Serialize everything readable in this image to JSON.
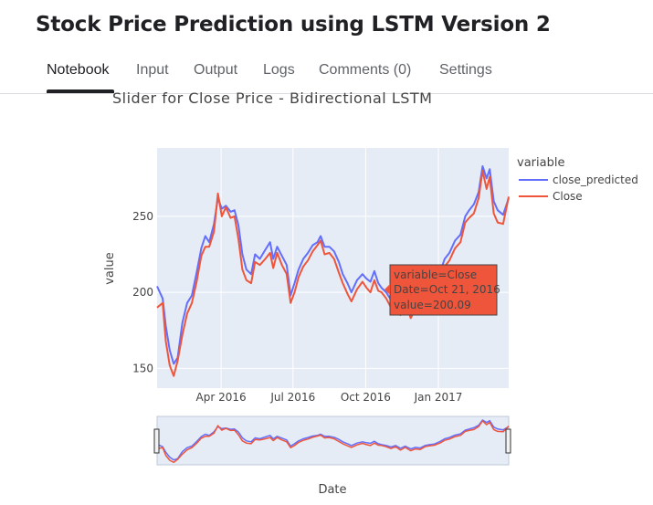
{
  "page": {
    "title": "Stock Price Prediction using LSTM Version 2"
  },
  "tabs": [
    {
      "label": "Notebook",
      "active": true
    },
    {
      "label": "Input",
      "active": false
    },
    {
      "label": "Output",
      "active": false
    },
    {
      "label": "Logs",
      "active": false
    },
    {
      "label": "Comments (0)",
      "active": false
    },
    {
      "label": "Settings",
      "active": false
    }
  ],
  "colors": {
    "close_predicted": "#636efa",
    "Close": "#ef553b",
    "plot_bg": "#e5ecf6",
    "tooltip_bg": "#ef553b"
  },
  "chart_data": {
    "type": "line",
    "title": "Slider for Close Price - Bidirectional LSTM",
    "xlabel": "Date",
    "ylabel": "value",
    "x_ticks": [
      "Apr 2016",
      "Jul 2016",
      "Oct 2016",
      "Jan 2017"
    ],
    "y_ticks": [
      150,
      200,
      250
    ],
    "xlim": [
      "2016-01-11",
      "2017-03-31"
    ],
    "ylim": [
      137,
      295
    ],
    "grid": true,
    "legend_title": "variable",
    "legend_position": "top-right",
    "range_slider": true,
    "series": [
      {
        "name": "close_predicted",
        "points": [
          [
            "2016-01-11",
            204
          ],
          [
            "2016-01-18",
            196
          ],
          [
            "2016-01-22",
            178
          ],
          [
            "2016-01-27",
            162
          ],
          [
            "2016-02-01",
            153
          ],
          [
            "2016-02-06",
            157
          ],
          [
            "2016-02-12",
            180
          ],
          [
            "2016-02-18",
            193
          ],
          [
            "2016-02-24",
            198
          ],
          [
            "2016-03-01",
            213
          ],
          [
            "2016-03-07",
            229
          ],
          [
            "2016-03-12",
            237
          ],
          [
            "2016-03-17",
            233
          ],
          [
            "2016-03-23",
            245
          ],
          [
            "2016-03-28",
            262
          ],
          [
            "2016-04-02",
            255
          ],
          [
            "2016-04-07",
            257
          ],
          [
            "2016-04-13",
            253
          ],
          [
            "2016-04-18",
            254
          ],
          [
            "2016-04-23",
            244
          ],
          [
            "2016-04-28",
            225
          ],
          [
            "2016-05-03",
            215
          ],
          [
            "2016-05-09",
            212
          ],
          [
            "2016-05-14",
            225
          ],
          [
            "2016-05-20",
            222
          ],
          [
            "2016-05-27",
            228
          ],
          [
            "2016-06-02",
            233
          ],
          [
            "2016-06-06",
            222
          ],
          [
            "2016-06-11",
            230
          ],
          [
            "2016-06-17",
            224
          ],
          [
            "2016-06-23",
            218
          ],
          [
            "2016-06-28",
            198
          ],
          [
            "2016-07-03",
            206
          ],
          [
            "2016-07-08",
            215
          ],
          [
            "2016-07-14",
            222
          ],
          [
            "2016-07-20",
            226
          ],
          [
            "2016-07-26",
            231
          ],
          [
            "2016-08-01",
            233
          ],
          [
            "2016-08-05",
            237
          ],
          [
            "2016-08-10",
            230
          ],
          [
            "2016-08-16",
            230
          ],
          [
            "2016-08-22",
            227
          ],
          [
            "2016-08-28",
            220
          ],
          [
            "2016-09-02",
            212
          ],
          [
            "2016-09-08",
            206
          ],
          [
            "2016-09-13",
            200
          ],
          [
            "2016-09-20",
            208
          ],
          [
            "2016-09-27",
            212
          ],
          [
            "2016-10-02",
            209
          ],
          [
            "2016-10-07",
            207
          ],
          [
            "2016-10-12",
            214
          ],
          [
            "2016-10-17",
            206
          ],
          [
            "2016-10-21",
            203
          ],
          [
            "2016-10-27",
            200
          ],
          [
            "2016-11-02",
            195
          ],
          [
            "2016-11-08",
            200
          ],
          [
            "2016-11-14",
            191
          ],
          [
            "2016-11-20",
            198
          ],
          [
            "2016-11-27",
            189
          ],
          [
            "2016-12-03",
            194
          ],
          [
            "2016-12-09",
            192
          ],
          [
            "2016-12-15",
            200
          ],
          [
            "2016-12-21",
            203
          ],
          [
            "2016-12-27",
            205
          ],
          [
            "2017-01-03",
            213
          ],
          [
            "2017-01-09",
            222
          ],
          [
            "2017-01-15",
            226
          ],
          [
            "2017-01-22",
            234
          ],
          [
            "2017-01-29",
            238
          ],
          [
            "2017-02-04",
            250
          ],
          [
            "2017-02-09",
            254
          ],
          [
            "2017-02-15",
            258
          ],
          [
            "2017-02-21",
            266
          ],
          [
            "2017-02-26",
            283
          ],
          [
            "2017-03-03",
            275
          ],
          [
            "2017-03-07",
            281
          ],
          [
            "2017-03-12",
            260
          ],
          [
            "2017-03-17",
            254
          ],
          [
            "2017-03-24",
            251
          ],
          [
            "2017-03-31",
            262
          ]
        ]
      },
      {
        "name": "Close",
        "points": [
          [
            "2016-01-11",
            190
          ],
          [
            "2016-01-18",
            193
          ],
          [
            "2016-01-22",
            168
          ],
          [
            "2016-01-27",
            152
          ],
          [
            "2016-02-01",
            145
          ],
          [
            "2016-02-06",
            155
          ],
          [
            "2016-02-12",
            172
          ],
          [
            "2016-02-18",
            186
          ],
          [
            "2016-02-24",
            193
          ],
          [
            "2016-03-01",
            207
          ],
          [
            "2016-03-07",
            224
          ],
          [
            "2016-03-12",
            230
          ],
          [
            "2016-03-17",
            230
          ],
          [
            "2016-03-23",
            240
          ],
          [
            "2016-03-28",
            265
          ],
          [
            "2016-04-02",
            250
          ],
          [
            "2016-04-07",
            256
          ],
          [
            "2016-04-13",
            249
          ],
          [
            "2016-04-18",
            250
          ],
          [
            "2016-04-23",
            235
          ],
          [
            "2016-04-28",
            215
          ],
          [
            "2016-05-03",
            208
          ],
          [
            "2016-05-09",
            206
          ],
          [
            "2016-05-14",
            220
          ],
          [
            "2016-05-20",
            218
          ],
          [
            "2016-05-27",
            222
          ],
          [
            "2016-06-02",
            226
          ],
          [
            "2016-06-06",
            216
          ],
          [
            "2016-06-11",
            226
          ],
          [
            "2016-06-17",
            218
          ],
          [
            "2016-06-23",
            212
          ],
          [
            "2016-06-28",
            193
          ],
          [
            "2016-07-03",
            200
          ],
          [
            "2016-07-08",
            210
          ],
          [
            "2016-07-14",
            217
          ],
          [
            "2016-07-20",
            221
          ],
          [
            "2016-07-26",
            227
          ],
          [
            "2016-08-01",
            231
          ],
          [
            "2016-08-05",
            234
          ],
          [
            "2016-08-10",
            225
          ],
          [
            "2016-08-16",
            226
          ],
          [
            "2016-08-22",
            222
          ],
          [
            "2016-08-28",
            213
          ],
          [
            "2016-09-02",
            206
          ],
          [
            "2016-09-08",
            199
          ],
          [
            "2016-09-13",
            194
          ],
          [
            "2016-09-20",
            202
          ],
          [
            "2016-09-27",
            207
          ],
          [
            "2016-10-02",
            203
          ],
          [
            "2016-10-07",
            200
          ],
          [
            "2016-10-12",
            208
          ],
          [
            "2016-10-17",
            201
          ],
          [
            "2016-10-21",
            200.09
          ],
          [
            "2016-10-27",
            196
          ],
          [
            "2016-11-02",
            190
          ],
          [
            "2016-11-08",
            196
          ],
          [
            "2016-11-14",
            185
          ],
          [
            "2016-11-20",
            194
          ],
          [
            "2016-11-27",
            183
          ],
          [
            "2016-12-03",
            189
          ],
          [
            "2016-12-09",
            187
          ],
          [
            "2016-12-15",
            196
          ],
          [
            "2016-12-21",
            199
          ],
          [
            "2016-12-27",
            201
          ],
          [
            "2017-01-03",
            208
          ],
          [
            "2017-01-09",
            217
          ],
          [
            "2017-01-15",
            221
          ],
          [
            "2017-01-22",
            229
          ],
          [
            "2017-01-29",
            233
          ],
          [
            "2017-02-04",
            246
          ],
          [
            "2017-02-09",
            249
          ],
          [
            "2017-02-15",
            252
          ],
          [
            "2017-02-21",
            262
          ],
          [
            "2017-02-26",
            280
          ],
          [
            "2017-03-03",
            268
          ],
          [
            "2017-03-07",
            276
          ],
          [
            "2017-03-12",
            252
          ],
          [
            "2017-03-17",
            246
          ],
          [
            "2017-03-24",
            245
          ],
          [
            "2017-03-31",
            263
          ]
        ]
      }
    ],
    "tooltip": {
      "lines": [
        "variable=Close",
        "Date=Oct 21, 2016",
        "value=200.09"
      ],
      "date": "2016-10-21",
      "value": 200.09
    }
  }
}
